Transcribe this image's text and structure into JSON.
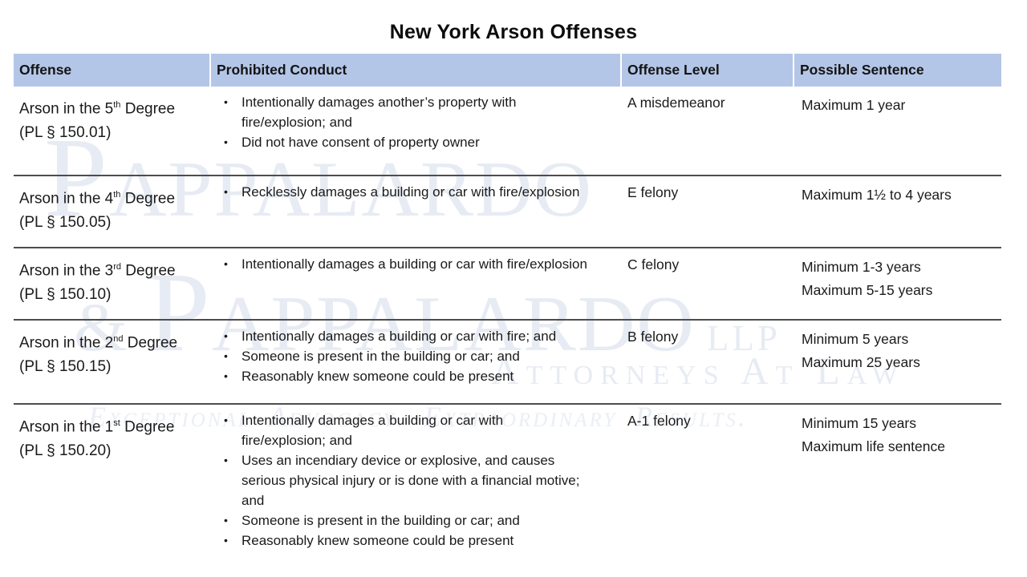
{
  "title": "New York Arson Offenses",
  "watermark": {
    "line1": "Pappalardo",
    "line2_amp": "&",
    "line2_name": "Pappalardo",
    "line2_suffix": "llp",
    "line3": "Attorneys At Law",
    "line4": "Exceptional Advocacy. Extraordinary Results.",
    "color": "#e7ebf3"
  },
  "table": {
    "headers": [
      "Offense",
      "Prohibited Conduct",
      "Offense Level",
      "Possible Sentence"
    ],
    "header_bg": "#b4c6e7",
    "bullet_glyph": "•",
    "rows": [
      {
        "offense_prefix": "Arson in the 5",
        "offense_sup": "th",
        "offense_suffix": " Degree",
        "code": "(PL § 150.01)",
        "conduct": [
          "Intentionally damages another’s property with fire/explosion; and",
          "Did not have consent of property owner"
        ],
        "level": "A misdemeanor",
        "sentence": [
          "Maximum 1 year"
        ]
      },
      {
        "offense_prefix": "Arson in the 4",
        "offense_sup": "th",
        "offense_suffix": " Degree",
        "code": "(PL § 150.05)",
        "conduct": [
          "Recklessly damages a building or car with fire/explosion"
        ],
        "level": "E felony",
        "sentence": [
          "Maximum 1½ to 4 years"
        ]
      },
      {
        "offense_prefix": "Arson in the 3",
        "offense_sup": "rd",
        "offense_suffix": " Degree",
        "code": "(PL § 150.10)",
        "conduct": [
          "Intentionally damages a building or car with fire/explosion"
        ],
        "level": "C felony",
        "sentence": [
          "Minimum 1-3 years",
          "Maximum 5-15 years"
        ]
      },
      {
        "offense_prefix": "Arson in the 2",
        "offense_sup": "nd",
        "offense_suffix": " Degree",
        "code": "(PL § 150.15)",
        "conduct": [
          "Intentionally damages a building or car with fire; and",
          "Someone is present in the building or car; and",
          "Reasonably knew someone could be present"
        ],
        "level": "B felony",
        "sentence": [
          "Minimum 5 years",
          "Maximum 25 years"
        ]
      },
      {
        "offense_prefix": "Arson in the 1",
        "offense_sup": "st",
        "offense_suffix": " Degree",
        "code": "(PL § 150.20)",
        "conduct": [
          "Intentionally damages a building or car with fire/explosion; and",
          "Uses an incendiary device or explosive, and causes serious physical injury or is done with a financial motive; and",
          "Someone is present in the building or car; and",
          "Reasonably knew someone could be present"
        ],
        "level": "A-1 felony",
        "sentence": [
          "Minimum 15 years",
          "Maximum life sentence"
        ]
      }
    ]
  }
}
